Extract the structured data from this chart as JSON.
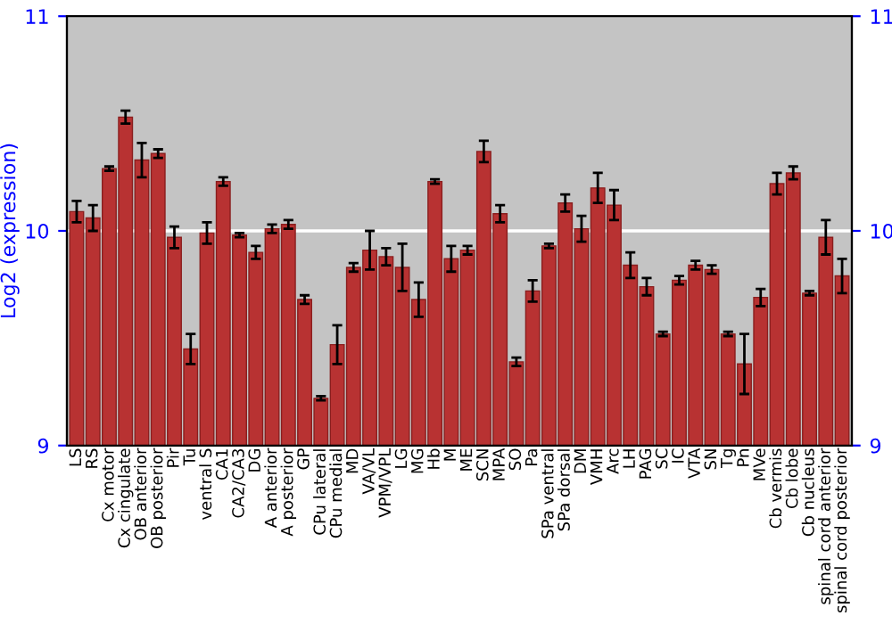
{
  "chart_data": {
    "type": "bar",
    "ylabel": "Log2 (expression)",
    "categories": [
      "LS",
      "RS",
      "Cx motor",
      "Cx cingulate",
      "OB anterior",
      "OB posterior",
      "Pir",
      "Tu",
      "ventral S",
      "CA1",
      "CA2/CA3",
      "DG",
      "A anterior",
      "A posterior",
      "GP",
      "CPu lateral",
      "CPu medial",
      "MD",
      "VA/VL",
      "VPM/VPL",
      "LG",
      "MG",
      "Hb",
      "M",
      "ME",
      "SCN",
      "MPA",
      "SO",
      "Pa",
      "SPa ventral",
      "SPa dorsal",
      "DM",
      "VMH",
      "Arc",
      "LH",
      "PAG",
      "SC",
      "IC",
      "VTA",
      "SN",
      "Tg",
      "Pn",
      "MVe",
      "Cb vermis",
      "Cb lobe",
      "Cb nucleus",
      "spinal cord anterior",
      "spinal cord posterior"
    ],
    "values": [
      10.09,
      10.06,
      10.29,
      10.53,
      10.33,
      10.36,
      9.97,
      9.45,
      9.99,
      10.23,
      9.98,
      9.9,
      10.01,
      10.03,
      9.68,
      9.22,
      9.47,
      9.83,
      9.91,
      9.88,
      9.83,
      9.68,
      10.23,
      9.87,
      9.91,
      10.37,
      10.08,
      9.39,
      9.72,
      9.93,
      10.13,
      10.01,
      10.2,
      10.12,
      9.84,
      9.74,
      9.52,
      9.77,
      9.84,
      9.82,
      9.52,
      9.38,
      9.69,
      10.22,
      10.27,
      9.71,
      9.97,
      9.79
    ],
    "errors": [
      0.05,
      0.06,
      0.01,
      0.03,
      0.08,
      0.02,
      0.05,
      0.07,
      0.05,
      0.02,
      0.01,
      0.03,
      0.02,
      0.02,
      0.02,
      0.01,
      0.09,
      0.02,
      0.09,
      0.04,
      0.11,
      0.08,
      0.01,
      0.06,
      0.02,
      0.05,
      0.04,
      0.02,
      0.05,
      0.01,
      0.04,
      0.06,
      0.07,
      0.07,
      0.06,
      0.04,
      0.01,
      0.02,
      0.02,
      0.02,
      0.01,
      0.14,
      0.04,
      0.05,
      0.03,
      0.01,
      0.08,
      0.08
    ],
    "color": "#b83232",
    "ylim": [
      9,
      11
    ],
    "yticks": [
      9,
      10,
      11
    ],
    "y2lim": [
      9,
      11
    ],
    "y2ticks": [
      9,
      10,
      11
    ],
    "grid": "y"
  }
}
